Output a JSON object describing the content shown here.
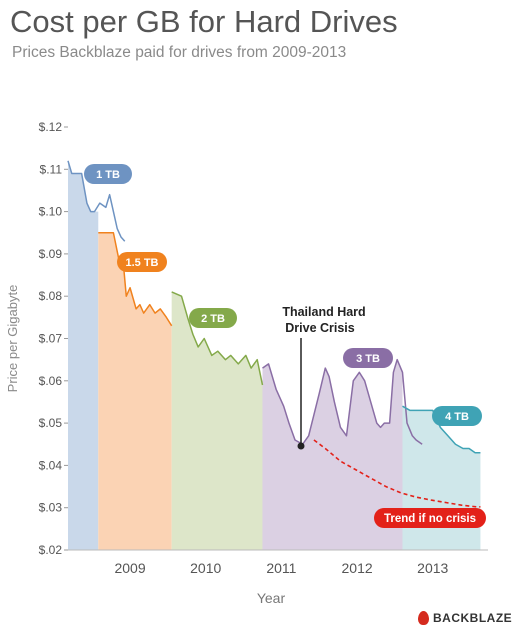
{
  "header": {
    "title": "Cost per GB for Hard Drives",
    "subtitle": "Prices Backblaze paid for drives from 2009-2013"
  },
  "brand": {
    "name": "BACKBLAZE"
  },
  "colors": {
    "1 TB": "#6e93c2",
    "1.5 TB": "#f0821e",
    "2 TB": "#84a94a",
    "3 TB": "#8a6ea5",
    "4 TB": "#3fa3b5",
    "trend": "#e32119",
    "fill_1 TB": "#c9d8ea",
    "fill_1.5 TB": "#fbd3b4",
    "fill_2 TB": "#dde6c9",
    "fill_3 TB": "#dbd0e3",
    "fill_4 TB": "#cfe7ea"
  },
  "chart_data": {
    "type": "area",
    "title": "Cost per GB for Hard Drives",
    "subtitle": "Prices Backblaze paid for drives from 2009-2013",
    "xlabel": "Year",
    "ylabel": "Price per Gigabyte",
    "xlim": [
      2008.2,
      2013.75
    ],
    "ylim": [
      0.02,
      0.12
    ],
    "x_ticks": [
      2009,
      2010,
      2011,
      2012,
      2013
    ],
    "x_tick_labels": [
      "2009",
      "2010",
      "2011",
      "2012",
      "2013"
    ],
    "y_ticks": [
      0.02,
      0.03,
      0.04,
      0.05,
      0.06,
      0.07,
      0.08,
      0.09,
      0.1,
      0.11,
      0.12
    ],
    "y_tick_labels": [
      "$.02",
      "$.03",
      "$.04",
      "$.05",
      "$.06",
      "$.07",
      "$.08",
      "$.09",
      "$.10",
      "$.11",
      "$.12"
    ],
    "grid": false,
    "series": [
      {
        "name": "1 TB",
        "band": [
          2008.2,
          2008.6
        ],
        "x": [
          2008.2,
          2008.25,
          2008.3,
          2008.38,
          2008.45,
          2008.5,
          2008.55,
          2008.62,
          2008.7,
          2008.75,
          2008.8,
          2008.85,
          2008.9,
          2008.95
        ],
        "y": [
          0.112,
          0.109,
          0.109,
          0.109,
          0.102,
          0.1,
          0.1,
          0.102,
          0.101,
          0.104,
          0.1,
          0.096,
          0.094,
          0.093
        ]
      },
      {
        "name": "1.5 TB",
        "band": [
          2008.6,
          2009.57
        ],
        "x": [
          2008.6,
          2008.8,
          2008.88,
          2008.92,
          2008.97,
          2009.02,
          2009.1,
          2009.15,
          2009.2,
          2009.28,
          2009.35,
          2009.42,
          2009.5,
          2009.57
        ],
        "y": [
          0.095,
          0.095,
          0.088,
          0.09,
          0.08,
          0.082,
          0.077,
          0.078,
          0.076,
          0.078,
          0.076,
          0.077,
          0.075,
          0.073
        ]
      },
      {
        "name": "2 TB",
        "band": [
          2009.57,
          2010.77
        ],
        "x": [
          2009.57,
          2009.7,
          2009.78,
          2009.85,
          2009.92,
          2010.0,
          2010.1,
          2010.18,
          2010.28,
          2010.35,
          2010.45,
          2010.55,
          2010.62,
          2010.7,
          2010.77
        ],
        "y": [
          0.081,
          0.08,
          0.075,
          0.071,
          0.068,
          0.07,
          0.066,
          0.067,
          0.065,
          0.066,
          0.064,
          0.066,
          0.063,
          0.065,
          0.059
        ]
      },
      {
        "name": "3 TB",
        "band": [
          2010.77,
          2012.62
        ],
        "x": [
          2010.77,
          2010.85,
          2010.95,
          2011.05,
          2011.12,
          2011.2,
          2011.3,
          2011.38,
          2011.45,
          2011.52,
          2011.6,
          2011.65,
          2011.72,
          2011.8,
          2011.88,
          2011.97,
          2012.05,
          2012.12,
          2012.2,
          2012.28,
          2012.33,
          2012.38,
          2012.45,
          2012.5,
          2012.55,
          2012.62,
          2012.68,
          2012.75,
          2012.8,
          2012.88
        ],
        "y": [
          0.063,
          0.064,
          0.058,
          0.054,
          0.05,
          0.046,
          0.045,
          0.047,
          0.052,
          0.057,
          0.063,
          0.061,
          0.055,
          0.049,
          0.047,
          0.06,
          0.062,
          0.06,
          0.055,
          0.05,
          0.049,
          0.05,
          0.05,
          0.062,
          0.065,
          0.062,
          0.05,
          0.047,
          0.046,
          0.045
        ]
      },
      {
        "name": "4 TB",
        "band": [
          2012.62,
          2013.65
        ],
        "x": [
          2012.62,
          2012.72,
          2012.82,
          2012.92,
          2013.02,
          2013.12,
          2013.22,
          2013.32,
          2013.42,
          2013.5,
          2013.58,
          2013.65
        ],
        "y": [
          0.054,
          0.053,
          0.053,
          0.053,
          0.053,
          0.049,
          0.047,
          0.045,
          0.044,
          0.044,
          0.043,
          0.043
        ]
      }
    ],
    "trend": {
      "name": "Trend if no crisis",
      "x": [
        2011.45,
        2011.6,
        2011.8,
        2012.0,
        2012.2,
        2012.4,
        2012.6,
        2012.8,
        2013.0,
        2013.2,
        2013.4,
        2013.6,
        2013.65
      ],
      "y": [
        0.046,
        0.044,
        0.041,
        0.039,
        0.037,
        0.035,
        0.0335,
        0.0325,
        0.0318,
        0.0312,
        0.0306,
        0.0302,
        0.0302
      ]
    },
    "annotations": [
      {
        "text": "Thailand Hard",
        "text2": "Drive Crisis",
        "x": 2011.4,
        "y": 0.045
      }
    ]
  }
}
